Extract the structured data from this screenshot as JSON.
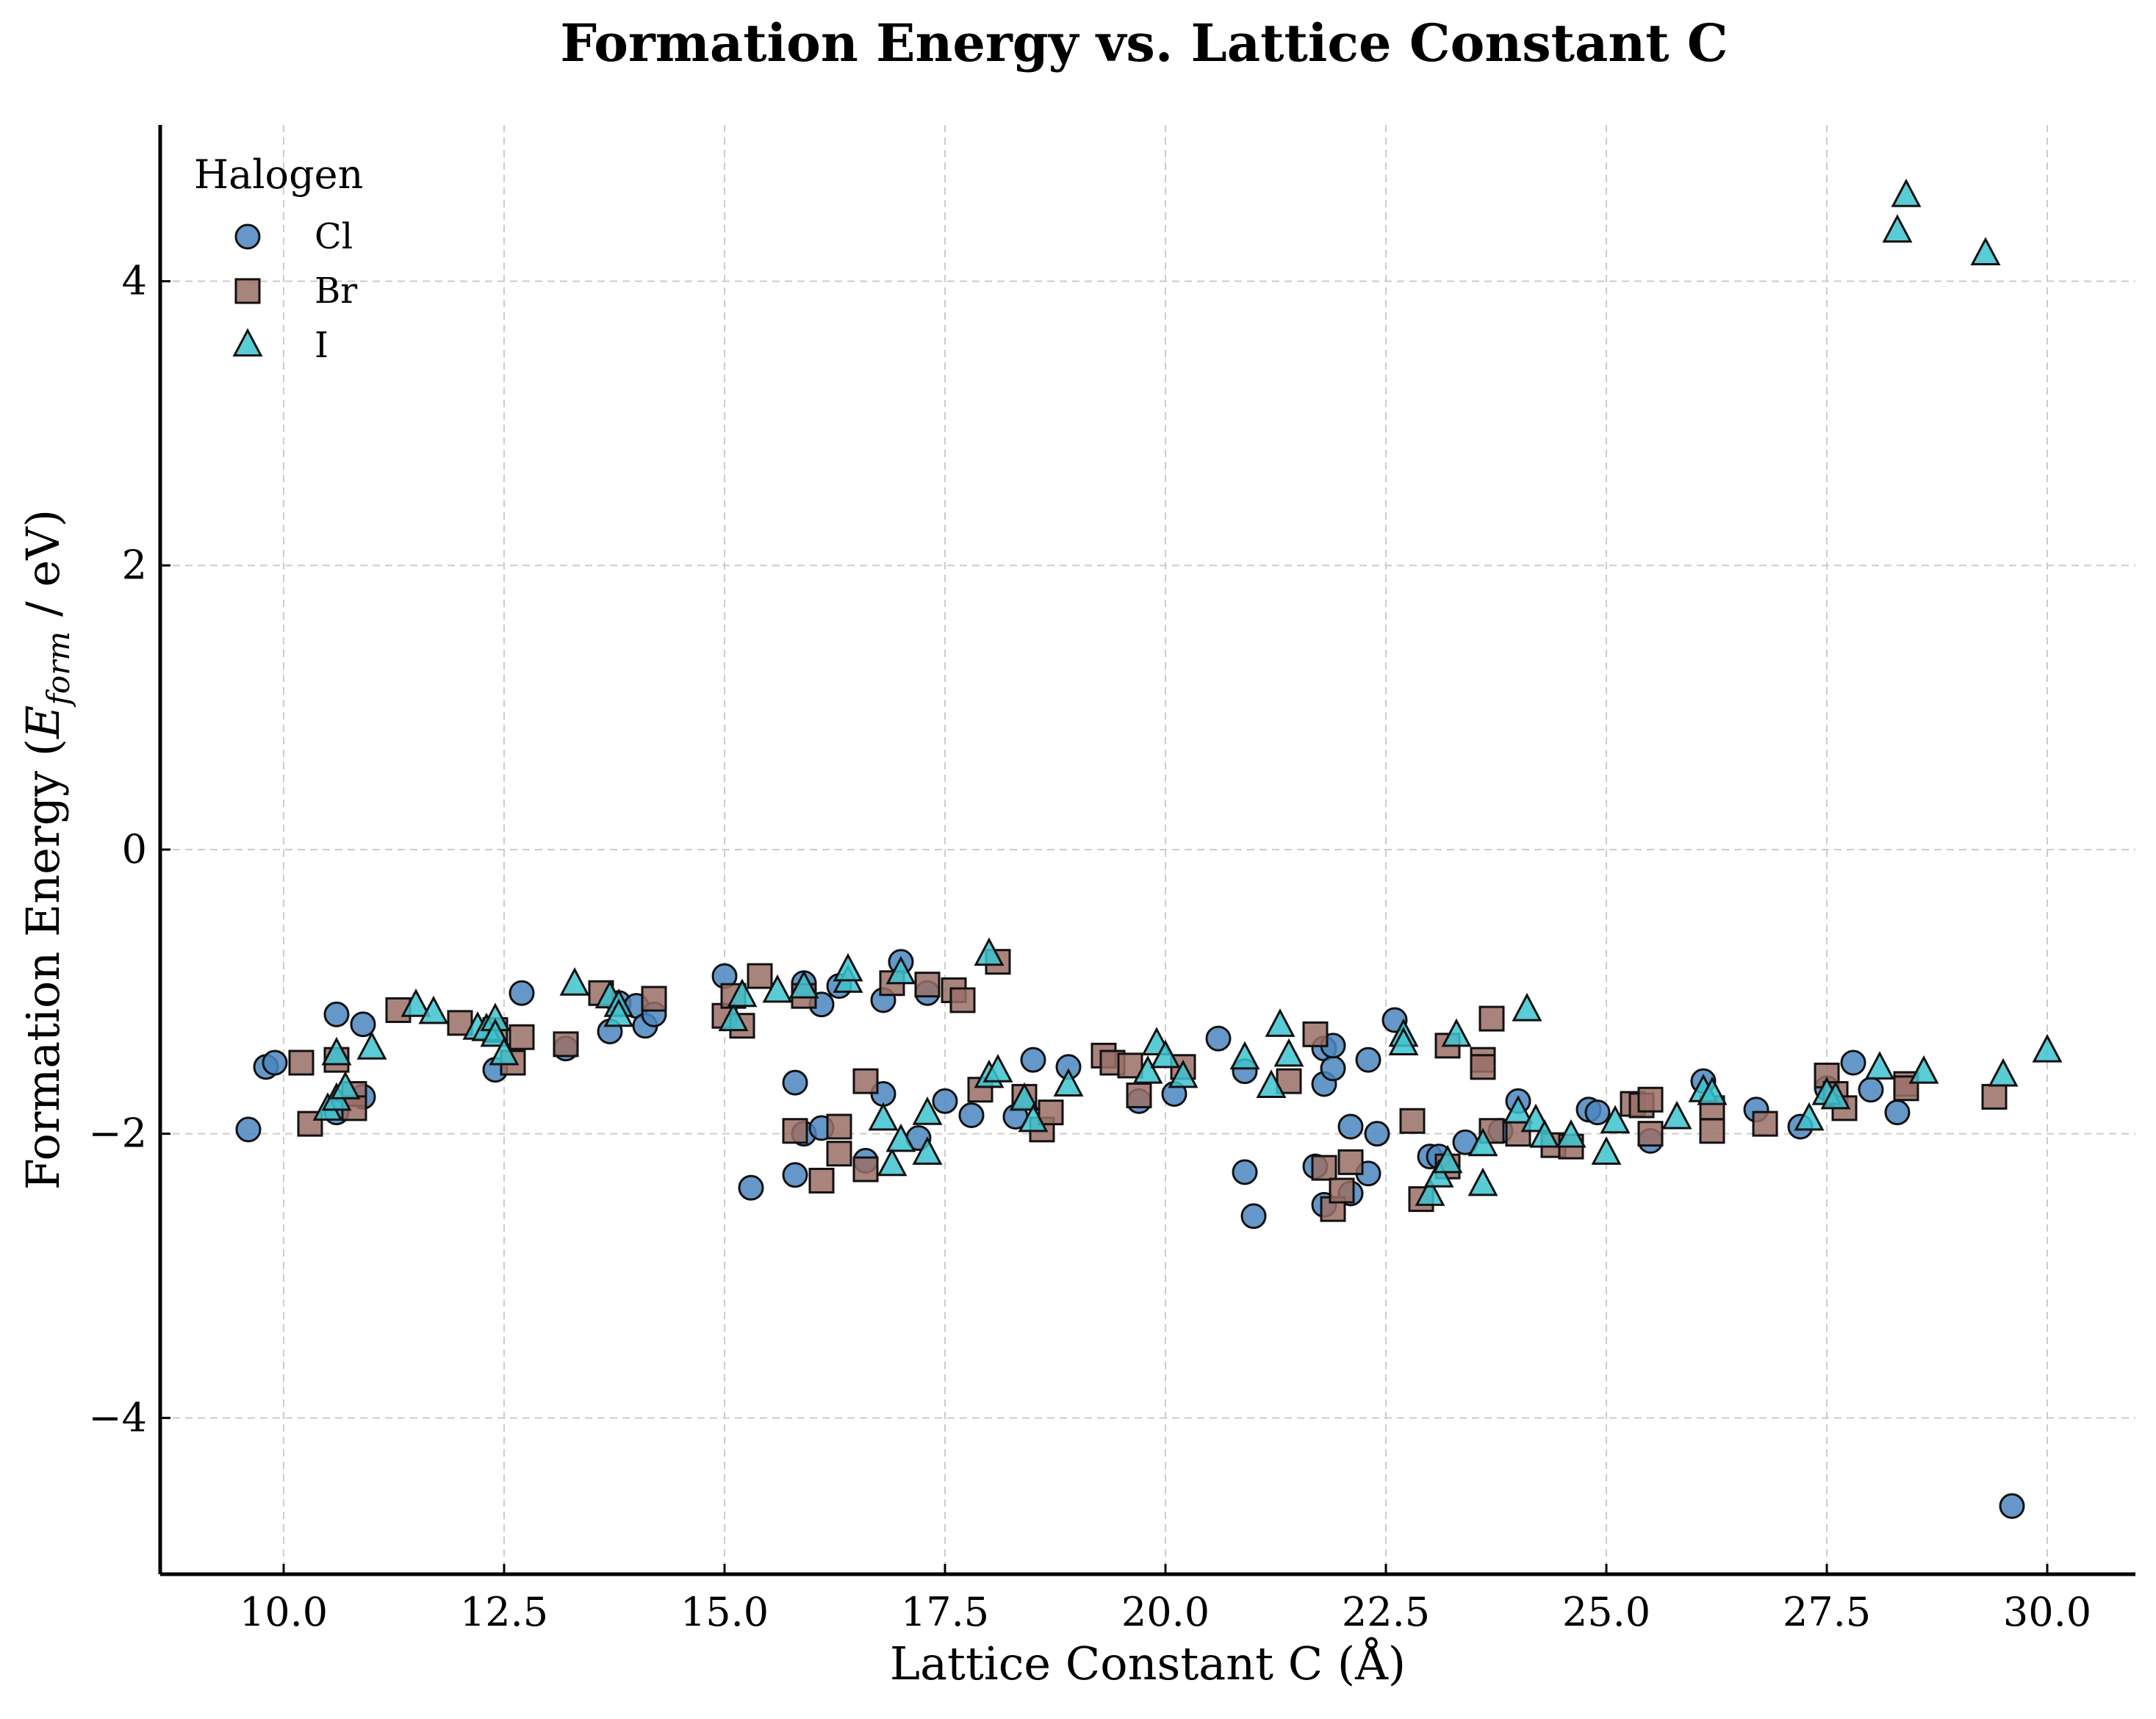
{
  "chart_data": {
    "type": "scatter",
    "title": "Formation Energy vs. Lattice Constant C",
    "xlabel": "Lattice Constant C (Å)",
    "ylabel_prefix": "Formation Energy (",
    "ylabel_symbol": "E",
    "ylabel_subscript": "form",
    "ylabel_suffix": " / eV)",
    "xlim": [
      8.6,
      31.0
    ],
    "ylim": [
      -5.1,
      5.1
    ],
    "x_ticks": [
      10.0,
      12.5,
      15.0,
      17.5,
      20.0,
      22.5,
      25.0,
      27.5,
      30.0
    ],
    "x_tick_labels": [
      "10.0",
      "12.5",
      "15.0",
      "17.5",
      "20.0",
      "22.5",
      "25.0",
      "27.5",
      "30.0"
    ],
    "y_ticks": [
      -4,
      -2,
      0,
      2,
      4
    ],
    "y_tick_labels": [
      "−4",
      "−2",
      "0",
      "2",
      "4"
    ],
    "grid": true,
    "legend": {
      "title": "Halogen",
      "placement": "top-left"
    },
    "series": [
      {
        "name": "Cl",
        "marker": "circle",
        "color": "#4a86c0",
        "points": [
          [
            9.6,
            -1.97
          ],
          [
            9.8,
            -1.53
          ],
          [
            9.9,
            -1.5
          ],
          [
            10.6,
            -1.16
          ],
          [
            10.9,
            -1.23
          ],
          [
            10.9,
            -1.74
          ],
          [
            10.6,
            -1.85
          ],
          [
            12.4,
            -1.55
          ],
          [
            12.7,
            -1.01
          ],
          [
            13.2,
            -1.4
          ],
          [
            13.7,
            -1.28
          ],
          [
            13.8,
            -1.08
          ],
          [
            14.0,
            -1.1
          ],
          [
            14.1,
            -1.24
          ],
          [
            14.2,
            -1.16
          ],
          [
            15.0,
            -0.89
          ],
          [
            15.3,
            -2.38
          ],
          [
            15.8,
            -1.64
          ],
          [
            15.8,
            -2.29
          ],
          [
            15.9,
            -2.0
          ],
          [
            15.9,
            -0.94
          ],
          [
            16.1,
            -1.09
          ],
          [
            16.1,
            -1.96
          ],
          [
            16.3,
            -0.96
          ],
          [
            16.6,
            -2.19
          ],
          [
            16.8,
            -1.06
          ],
          [
            16.8,
            -1.72
          ],
          [
            17.0,
            -0.79
          ],
          [
            17.2,
            -2.03
          ],
          [
            17.3,
            -1.01
          ],
          [
            17.5,
            -1.77
          ],
          [
            17.8,
            -1.87
          ],
          [
            18.3,
            -1.88
          ],
          [
            18.5,
            -1.48
          ],
          [
            18.9,
            -1.53
          ],
          [
            19.7,
            -1.77
          ],
          [
            20.1,
            -1.72
          ],
          [
            20.6,
            -1.33
          ],
          [
            20.9,
            -1.56
          ],
          [
            20.9,
            -2.27
          ],
          [
            21.0,
            -2.58
          ],
          [
            21.7,
            -2.23
          ],
          [
            21.8,
            -1.4
          ],
          [
            21.8,
            -2.5
          ],
          [
            21.8,
            -1.65
          ],
          [
            21.9,
            -1.54
          ],
          [
            21.9,
            -1.38
          ],
          [
            22.1,
            -1.95
          ],
          [
            22.1,
            -2.42
          ],
          [
            22.3,
            -2.28
          ],
          [
            22.3,
            -1.48
          ],
          [
            22.4,
            -2.0
          ],
          [
            22.6,
            -1.2
          ],
          [
            23.0,
            -2.16
          ],
          [
            23.1,
            -2.16
          ],
          [
            23.4,
            -2.06
          ],
          [
            23.8,
            -1.98
          ],
          [
            24.0,
            -1.77
          ],
          [
            24.8,
            -1.83
          ],
          [
            24.9,
            -1.85
          ],
          [
            25.5,
            -2.05
          ],
          [
            26.1,
            -1.63
          ],
          [
            26.7,
            -1.83
          ],
          [
            27.2,
            -1.95
          ],
          [
            27.5,
            -1.68
          ],
          [
            27.8,
            -1.5
          ],
          [
            28.0,
            -1.69
          ],
          [
            28.3,
            -1.85
          ],
          [
            29.6,
            -4.62
          ]
        ]
      },
      {
        "name": "Br",
        "marker": "square",
        "color": "#9a6e66",
        "points": [
          [
            10.2,
            -1.5
          ],
          [
            10.3,
            -1.93
          ],
          [
            10.6,
            -1.48
          ],
          [
            10.8,
            -1.72
          ],
          [
            10.8,
            -1.82
          ],
          [
            11.3,
            -1.13
          ],
          [
            12.0,
            -1.22
          ],
          [
            12.4,
            -1.27
          ],
          [
            12.6,
            -1.5
          ],
          [
            12.7,
            -1.32
          ],
          [
            13.2,
            -1.37
          ],
          [
            13.6,
            -1.01
          ],
          [
            14.2,
            -1.05
          ],
          [
            15.0,
            -1.17
          ],
          [
            15.1,
            -1.03
          ],
          [
            15.2,
            -1.24
          ],
          [
            15.4,
            -0.89
          ],
          [
            15.8,
            -1.98
          ],
          [
            15.9,
            -1.03
          ],
          [
            16.1,
            -2.33
          ],
          [
            16.3,
            -1.95
          ],
          [
            16.3,
            -2.14
          ],
          [
            16.6,
            -1.63
          ],
          [
            16.6,
            -2.25
          ],
          [
            16.9,
            -0.94
          ],
          [
            17.3,
            -0.95
          ],
          [
            17.6,
            -0.99
          ],
          [
            17.7,
            -1.06
          ],
          [
            17.9,
            -1.69
          ],
          [
            18.1,
            -0.79
          ],
          [
            18.4,
            -1.74
          ],
          [
            18.6,
            -1.97
          ],
          [
            18.7,
            -1.85
          ],
          [
            19.3,
            -1.45
          ],
          [
            19.4,
            -1.5
          ],
          [
            19.6,
            -1.52
          ],
          [
            19.7,
            -1.73
          ],
          [
            20.2,
            -1.53
          ],
          [
            21.4,
            -1.63
          ],
          [
            21.7,
            -1.3
          ],
          [
            21.8,
            -2.24
          ],
          [
            21.9,
            -2.53
          ],
          [
            22.0,
            -2.4
          ],
          [
            22.1,
            -2.2
          ],
          [
            22.8,
            -1.91
          ],
          [
            22.9,
            -2.46
          ],
          [
            23.2,
            -1.38
          ],
          [
            23.2,
            -2.23
          ],
          [
            23.6,
            -1.48
          ],
          [
            23.6,
            -1.53
          ],
          [
            23.7,
            -1.19
          ],
          [
            23.7,
            -1.98
          ],
          [
            24.0,
            -2.0
          ],
          [
            24.4,
            -2.08
          ],
          [
            24.6,
            -2.09
          ],
          [
            25.3,
            -1.79
          ],
          [
            25.4,
            -1.8
          ],
          [
            25.5,
            -1.76
          ],
          [
            25.5,
            -2.0
          ],
          [
            26.2,
            -1.82
          ],
          [
            26.2,
            -1.98
          ],
          [
            26.8,
            -1.93
          ],
          [
            27.5,
            -1.59
          ],
          [
            27.6,
            -1.72
          ],
          [
            27.7,
            -1.82
          ],
          [
            28.4,
            -1.65
          ],
          [
            28.4,
            -1.68
          ],
          [
            29.4,
            -1.74
          ]
        ]
      },
      {
        "name": "I",
        "marker": "triangle",
        "color": "#3dc3cf",
        "points": [
          [
            10.5,
            -1.83
          ],
          [
            10.6,
            -1.76
          ],
          [
            10.6,
            -1.44
          ],
          [
            10.7,
            -1.68
          ],
          [
            11.0,
            -1.4
          ],
          [
            11.5,
            -1.1
          ],
          [
            11.7,
            -1.15
          ],
          [
            12.2,
            -1.26
          ],
          [
            12.3,
            -1.27
          ],
          [
            12.4,
            -1.2
          ],
          [
            12.4,
            -1.31
          ],
          [
            12.5,
            -1.44
          ],
          [
            13.3,
            -0.95
          ],
          [
            13.7,
            -1.04
          ],
          [
            13.8,
            -1.1
          ],
          [
            13.8,
            -1.17
          ],
          [
            15.1,
            -1.2
          ],
          [
            15.2,
            -1.03
          ],
          [
            15.6,
            -1.0
          ],
          [
            15.9,
            -0.97
          ],
          [
            16.4,
            -0.93
          ],
          [
            16.4,
            -0.85
          ],
          [
            16.8,
            -1.9
          ],
          [
            16.9,
            -2.22
          ],
          [
            17.0,
            -2.05
          ],
          [
            17.0,
            -0.87
          ],
          [
            17.3,
            -1.86
          ],
          [
            17.3,
            -2.14
          ],
          [
            18.0,
            -1.6
          ],
          [
            18.0,
            -0.74
          ],
          [
            18.1,
            -1.56
          ],
          [
            18.4,
            -1.76
          ],
          [
            18.5,
            -1.91
          ],
          [
            18.9,
            -1.66
          ],
          [
            19.8,
            -1.57
          ],
          [
            19.9,
            -1.37
          ],
          [
            20.0,
            -1.46
          ],
          [
            20.2,
            -1.6
          ],
          [
            20.9,
            -1.47
          ],
          [
            21.2,
            -1.67
          ],
          [
            21.3,
            -1.24
          ],
          [
            21.4,
            -1.45
          ],
          [
            22.7,
            -1.31
          ],
          [
            22.7,
            -1.37
          ],
          [
            23.0,
            -2.43
          ],
          [
            23.1,
            -2.3
          ],
          [
            23.2,
            -2.2
          ],
          [
            23.3,
            -1.31
          ],
          [
            23.6,
            -2.36
          ],
          [
            23.6,
            -2.08
          ],
          [
            24.0,
            -1.85
          ],
          [
            24.1,
            -1.13
          ],
          [
            24.2,
            -1.91
          ],
          [
            24.3,
            -2.02
          ],
          [
            24.6,
            -2.02
          ],
          [
            25.0,
            -2.14
          ],
          [
            25.1,
            -1.92
          ],
          [
            25.8,
            -1.89
          ],
          [
            26.1,
            -1.7
          ],
          [
            26.2,
            -1.72
          ],
          [
            27.3,
            -1.9
          ],
          [
            27.5,
            -1.72
          ],
          [
            27.6,
            -1.75
          ],
          [
            28.1,
            -1.54
          ],
          [
            28.3,
            4.35
          ],
          [
            28.4,
            4.6
          ],
          [
            28.6,
            -1.57
          ],
          [
            29.3,
            4.19
          ],
          [
            29.5,
            -1.59
          ],
          [
            30.0,
            -1.42
          ]
        ]
      }
    ]
  }
}
